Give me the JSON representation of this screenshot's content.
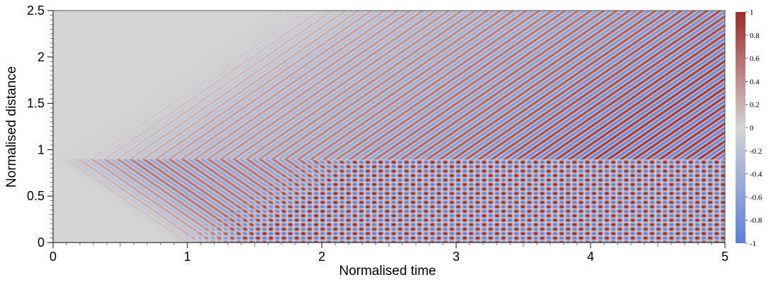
{
  "chart_data": {
    "type": "heatmap",
    "title": "",
    "xlabel": "Normalised time",
    "ylabel": "Normalised distance",
    "xlim": [
      0,
      5
    ],
    "ylim": [
      0,
      2.5
    ],
    "x_ticks": [
      0,
      1,
      2,
      3,
      4,
      5
    ],
    "x_tick_labels": [
      "0",
      "1",
      "2",
      "3",
      "4",
      "5"
    ],
    "y_ticks": [
      0,
      0.5,
      1,
      1.5,
      2,
      2.5
    ],
    "y_tick_labels": [
      "0",
      "0.5",
      "1",
      "1.5",
      "2",
      "2.5"
    ],
    "colorbar": {
      "range": [
        -1,
        1
      ],
      "ticks": [
        1,
        0.8,
        0.6,
        0.4,
        0.2,
        0,
        -0.2,
        -0.4,
        -0.6,
        -0.8,
        -1
      ],
      "tick_labels": [
        "1",
        "0.8",
        "0.6",
        "0.4",
        "0.2",
        "0",
        "-0.2",
        "-0.4",
        "-0.6",
        "-0.8",
        "-1"
      ],
      "colors": {
        "min": "#5b7fe0",
        "mid": "#d4d4d4",
        "max": "#a22828"
      }
    },
    "background_color": "#d3d3d3",
    "field_features": {
      "source_position": 0.9,
      "interface_position": 0.9,
      "wave_speed": 1.0,
      "upper_region": "travelling waves moving upward from the source, amplitude growing with time",
      "lower_region": "standing-wave checkerboard pattern after reflection at distance 0"
    },
    "grid": false,
    "legend": "colorbar right"
  }
}
